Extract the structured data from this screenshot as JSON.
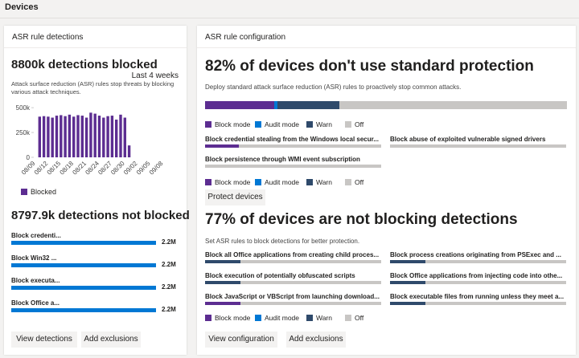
{
  "header": {
    "title": "Devices"
  },
  "detections": {
    "title": "ASR rule detections",
    "blocked_headline": "8800k detections blocked",
    "period": "Last 4 weeks",
    "description": "Attack surface reduction (ASR) rules stop threats by blocking various attack techniques.",
    "not_blocked_headline": "8797.9k detections not blocked",
    "rules": {
      "color": "#0078d4",
      "names": [
        "Block credenti...",
        "Block Win32 ...",
        "Block executa...",
        "Block Office a..."
      ],
      "values": [
        2200000,
        2200000,
        2200000,
        2200000
      ],
      "value_labels": [
        "2.2M",
        "2.2M",
        "2.2M",
        "2.2M"
      ]
    },
    "buttons": [
      "View detections",
      "Add exclusions"
    ]
  },
  "chart_data": {
    "type": "bar",
    "categories": [
      "08/09",
      null,
      null,
      "08/12",
      null,
      null,
      "08/15",
      null,
      null,
      "08/18",
      null,
      null,
      "08/21",
      null,
      null,
      "08/24",
      null,
      null,
      "08/27",
      null,
      null,
      "08/30",
      null,
      null,
      "09/02",
      null,
      null,
      "09/05",
      null,
      null,
      "09/08"
    ],
    "series": [
      {
        "name": "Blocked",
        "color": "#5c2d91",
        "values": [
          null,
          410000,
          415000,
          410000,
          400000,
          420000,
          425000,
          415000,
          430000,
          410000,
          425000,
          420000,
          400000,
          450000,
          440000,
          420000,
          400000,
          415000,
          420000,
          380000,
          430000,
          400000,
          120000,
          null,
          null,
          null,
          null,
          null,
          null,
          null,
          null
        ]
      }
    ],
    "ylim": [
      0,
      550000
    ],
    "yticks": [
      0,
      {
        "value": 250000,
        "label": "250k"
      },
      {
        "value": 500000,
        "label": "500k"
      }
    ]
  },
  "configuration": {
    "title": "ASR rule configuration",
    "legend": [
      {
        "name": "Block mode",
        "color": "#5c2d91"
      },
      {
        "name": "Audit mode",
        "color": "#0078d4"
      },
      {
        "name": "Warn",
        "color": "#2f4a6b"
      },
      {
        "name": "Off",
        "color": "#c8c6c4"
      }
    ],
    "standard": {
      "headline": "82% of devices don't use standard protection",
      "description": "Deploy standard attack surface reduction (ASR) rules to proactively stop common attacks.",
      "values": [
        19,
        1,
        17,
        63
      ],
      "rules": [
        {
          "name": "Block credential stealing from the Windows local secur...",
          "values": [
            19,
            0,
            0,
            81
          ]
        },
        {
          "name": "Block abuse of exploited vulnerable signed drivers",
          "values": [
            0,
            0,
            0,
            100
          ]
        },
        {
          "name": "Block persistence through WMI event subscription",
          "values": [
            0,
            0,
            0,
            100
          ]
        }
      ],
      "button": "Protect devices"
    },
    "blocking": {
      "headline": "77% of devices are not blocking detections",
      "description": "Set ASR rules to block detections for better protection.",
      "rules": [
        {
          "name": "Block all Office applications from creating child proces...",
          "values": [
            0,
            0,
            20,
            80
          ]
        },
        {
          "name": "Block process creations originating from PSExec and ...",
          "values": [
            0,
            0,
            20,
            80
          ]
        },
        {
          "name": "Block execution of potentially obfuscated scripts",
          "values": [
            0,
            0,
            20,
            80
          ]
        },
        {
          "name": "Block Office applications from injecting code into othe...",
          "values": [
            0,
            0,
            20,
            80
          ]
        },
        {
          "name": "Block JavaScript or VBScript from launching download...",
          "values": [
            20,
            0,
            0,
            80
          ]
        },
        {
          "name": "Block executable files from running unless they meet a...",
          "values": [
            0,
            0,
            20,
            80
          ]
        }
      ],
      "buttons": [
        "View configuration",
        "Add exclusions"
      ]
    }
  }
}
